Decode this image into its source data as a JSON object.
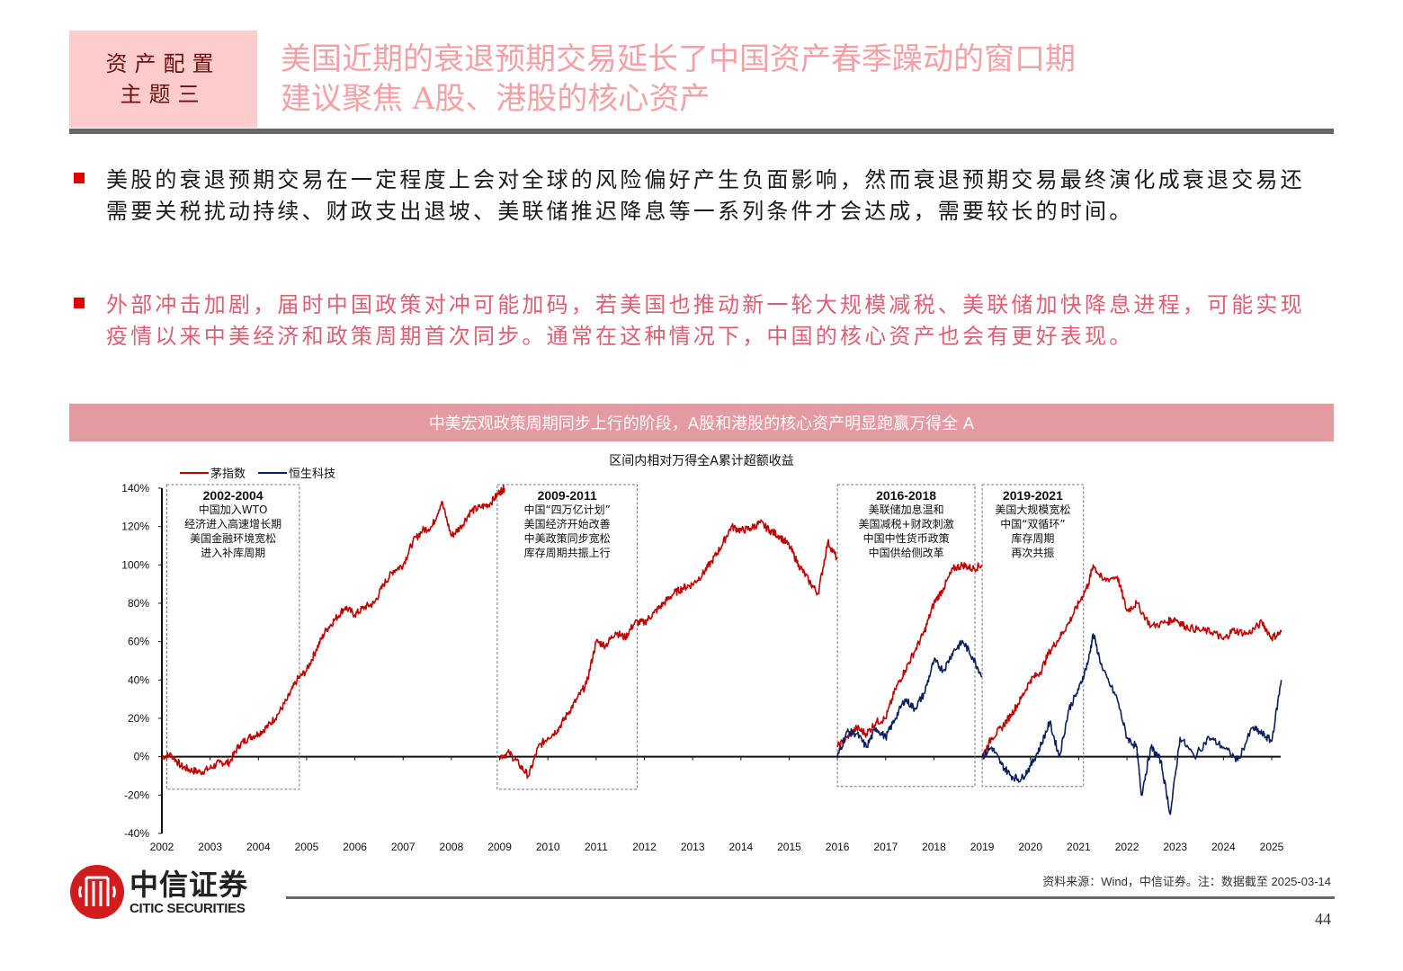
{
  "header": {
    "tag_line1": "资产配置",
    "tag_line2": "主题三",
    "title_line1": "美国近期的衰退预期交易延长了中国资产春季躁动的窗口期",
    "title_line2": "建议聚焦 A股、港股的核心资产"
  },
  "bullets": [
    {
      "text": "美股的衰退预期交易在一定程度上会对全球的风险偏好产生负面影响，然而衰退预期交易最终演化成衰退交易还需要关税扰动持续、财政支出退坡、美联储推迟降息等一系列条件才会达成，需要较长的时间。",
      "color": "#1a1a1a"
    },
    {
      "text": "外部冲击加剧，届时中国政策对冲可能加码，若美国也推动新一轮大规模减税、美联储加快降息进程，可能实现疫情以来中美经济和政策周期首次同步。通常在这种情况下，中国的核心资产也会有更好表现。",
      "color": "#dd5f73"
    }
  ],
  "banner": {
    "text": "中美宏观政策周期同步上行的阶段，A股和港股的核心资产明显跑赢万得全 A"
  },
  "colors": {
    "accent": "#e00000",
    "title_pink": "#f4a0a4",
    "banner": "#e49aa1",
    "tag_bg": "#ffcccc",
    "series_red": "#c00000",
    "series_navy": "#0b1f5c"
  },
  "chart_data": {
    "type": "line",
    "title": "区间内相对万得全A累计超额收益",
    "xlabel": "",
    "ylabel": "",
    "x_ticks": [
      "2002",
      "2003",
      "2004",
      "2005",
      "2006",
      "2007",
      "2008",
      "2009",
      "2010",
      "2011",
      "2012",
      "2013",
      "2014",
      "2015",
      "2016",
      "2017",
      "2018",
      "2019",
      "2020",
      "2021",
      "2022",
      "2023",
      "2024",
      "2025"
    ],
    "y_ticks": [
      "140%",
      "120%",
      "100%",
      "80%",
      "60%",
      "40%",
      "20%",
      "0%",
      "-20%",
      "-40%"
    ],
    "ylim": [
      -40,
      140
    ],
    "legend": [
      "茅指数",
      "恒生科技"
    ],
    "legend_position": "top-left",
    "grid": false,
    "series": [
      {
        "name": "茅指数",
        "color": "#c00000",
        "segments": [
          [
            [
              2002.0,
              0
            ],
            [
              2002.2,
              1
            ],
            [
              2002.4,
              -5
            ],
            [
              2002.6,
              -7
            ],
            [
              2002.8,
              -8
            ],
            [
              2003.0,
              -6
            ],
            [
              2003.2,
              -3
            ],
            [
              2003.4,
              -3
            ],
            [
              2003.6,
              6
            ],
            [
              2003.8,
              10
            ],
            [
              2004.0,
              12
            ],
            [
              2004.2,
              16
            ],
            [
              2004.4,
              22
            ],
            [
              2004.6,
              30
            ],
            [
              2004.8,
              40
            ],
            [
              2005.0,
              45
            ],
            [
              2005.2,
              56
            ],
            [
              2005.4,
              66
            ],
            [
              2005.6,
              72
            ],
            [
              2005.8,
              78
            ],
            [
              2006.0,
              74
            ],
            [
              2006.2,
              78
            ],
            [
              2006.4,
              80
            ],
            [
              2006.6,
              90
            ],
            [
              2006.8,
              97
            ],
            [
              2007.0,
              100
            ],
            [
              2007.2,
              112
            ],
            [
              2007.4,
              118
            ],
            [
              2007.6,
              120
            ],
            [
              2007.8,
              133
            ],
            [
              2008.0,
              115
            ],
            [
              2008.2,
              120
            ],
            [
              2008.4,
              128
            ],
            [
              2008.6,
              130
            ],
            [
              2008.8,
              132
            ],
            [
              2009.0,
              138
            ],
            [
              2009.1,
              140
            ]
          ],
          [
            [
              2009.0,
              0
            ],
            [
              2009.2,
              2
            ],
            [
              2009.4,
              -4
            ],
            [
              2009.6,
              -10
            ],
            [
              2009.8,
              5
            ],
            [
              2010.0,
              10
            ],
            [
              2010.2,
              14
            ],
            [
              2010.4,
              22
            ],
            [
              2010.6,
              30
            ],
            [
              2010.8,
              38
            ],
            [
              2011.0,
              60
            ],
            [
              2011.2,
              58
            ],
            [
              2011.4,
              65
            ],
            [
              2011.6,
              62
            ],
            [
              2011.8,
              70
            ],
            [
              2012.0,
              70
            ],
            [
              2012.2,
              75
            ],
            [
              2012.4,
              80
            ],
            [
              2012.6,
              85
            ],
            [
              2012.8,
              88
            ],
            [
              2013.0,
              90
            ],
            [
              2013.2,
              95
            ],
            [
              2013.4,
              102
            ],
            [
              2013.6,
              110
            ],
            [
              2013.8,
              120
            ],
            [
              2014.0,
              118
            ],
            [
              2014.2,
              119
            ],
            [
              2014.4,
              122
            ],
            [
              2014.6,
              118
            ],
            [
              2014.8,
              115
            ],
            [
              2015.0,
              110
            ],
            [
              2015.2,
              100
            ],
            [
              2015.4,
              92
            ],
            [
              2015.6,
              85
            ],
            [
              2015.8,
              112
            ],
            [
              2016.0,
              103
            ]
          ],
          [
            [
              2016.0,
              5
            ],
            [
              2016.2,
              10
            ],
            [
              2016.4,
              15
            ],
            [
              2016.6,
              12
            ],
            [
              2016.8,
              18
            ],
            [
              2017.0,
              20
            ],
            [
              2017.2,
              35
            ],
            [
              2017.4,
              45
            ],
            [
              2017.6,
              55
            ],
            [
              2017.8,
              65
            ],
            [
              2018.0,
              80
            ],
            [
              2018.2,
              88
            ],
            [
              2018.4,
              98
            ],
            [
              2018.6,
              100
            ],
            [
              2018.8,
              98
            ],
            [
              2019.0,
              100
            ]
          ],
          [
            [
              2019.0,
              0
            ],
            [
              2019.2,
              10
            ],
            [
              2019.4,
              15
            ],
            [
              2019.6,
              22
            ],
            [
              2019.8,
              30
            ],
            [
              2020.0,
              40
            ],
            [
              2020.2,
              44
            ],
            [
              2020.4,
              55
            ],
            [
              2020.6,
              62
            ],
            [
              2020.8,
              70
            ],
            [
              2021.0,
              80
            ],
            [
              2021.2,
              90
            ],
            [
              2021.3,
              100
            ],
            [
              2021.5,
              92
            ],
            [
              2021.8,
              94
            ],
            [
              2022.0,
              76
            ],
            [
              2022.2,
              80
            ],
            [
              2022.5,
              68
            ],
            [
              2022.8,
              70
            ],
            [
              2023.0,
              72
            ],
            [
              2023.2,
              68
            ],
            [
              2023.5,
              66
            ],
            [
              2023.8,
              65
            ],
            [
              2024.0,
              61
            ],
            [
              2024.2,
              66
            ],
            [
              2024.5,
              64
            ],
            [
              2024.8,
              70
            ],
            [
              2025.0,
              62
            ],
            [
              2025.2,
              65
            ]
          ]
        ]
      },
      {
        "name": "恒生科技",
        "color": "#0b1f5c",
        "segments": [
          [
            [
              2016.0,
              0
            ],
            [
              2016.2,
              13
            ],
            [
              2016.4,
              12
            ],
            [
              2016.6,
              5
            ],
            [
              2016.8,
              15
            ],
            [
              2017.0,
              10
            ],
            [
              2017.2,
              20
            ],
            [
              2017.4,
              30
            ],
            [
              2017.6,
              25
            ],
            [
              2017.8,
              33
            ],
            [
              2018.0,
              50
            ],
            [
              2018.2,
              45
            ],
            [
              2018.4,
              55
            ],
            [
              2018.6,
              60
            ],
            [
              2018.8,
              52
            ],
            [
              2019.0,
              42
            ]
          ],
          [
            [
              2019.0,
              0
            ],
            [
              2019.2,
              5
            ],
            [
              2019.4,
              -4
            ],
            [
              2019.6,
              -10
            ],
            [
              2019.8,
              -12
            ],
            [
              2020.0,
              -5
            ],
            [
              2020.2,
              5
            ],
            [
              2020.4,
              18
            ],
            [
              2020.6,
              0
            ],
            [
              2020.8,
              25
            ],
            [
              2021.0,
              35
            ],
            [
              2021.2,
              50
            ],
            [
              2021.3,
              64
            ],
            [
              2021.5,
              45
            ],
            [
              2021.8,
              30
            ],
            [
              2022.0,
              10
            ],
            [
              2022.2,
              5
            ],
            [
              2022.3,
              -20
            ],
            [
              2022.5,
              5
            ],
            [
              2022.7,
              -2
            ],
            [
              2022.9,
              -30
            ],
            [
              2023.1,
              10
            ],
            [
              2023.4,
              0
            ],
            [
              2023.7,
              10
            ],
            [
              2024.0,
              5
            ],
            [
              2024.3,
              -2
            ],
            [
              2024.6,
              15
            ],
            [
              2024.8,
              12
            ],
            [
              2025.0,
              8
            ],
            [
              2025.2,
              40
            ]
          ]
        ]
      }
    ],
    "annotations": [
      {
        "years": "2002-2004",
        "lines": [
          "中国加入WTO",
          "经济进入高速增长期",
          "美国金融环境宽松",
          "进入补库周期"
        ]
      },
      {
        "years": "2009-2011",
        "lines": [
          "中国“四万亿计划”",
          "美国经济开始改善",
          "中美政策同步宽松",
          "库存周期共振上行"
        ]
      },
      {
        "years": "2016-2018",
        "lines": [
          "美联储加息温和",
          "美国减税+财政刺激",
          "中国中性货币政策",
          "中国供给侧改革"
        ]
      },
      {
        "years": "2019-2021",
        "lines": [
          "美国大规模宽松",
          "中国“双循环”",
          "库存周期",
          "再次共振"
        ]
      }
    ]
  },
  "footer": {
    "logo_cn": "中信证券",
    "logo_en": "CITIC SECURITIES",
    "source": "资料来源：Wind，中信证券。注：数据截至 2025-03-14",
    "page": "44"
  }
}
